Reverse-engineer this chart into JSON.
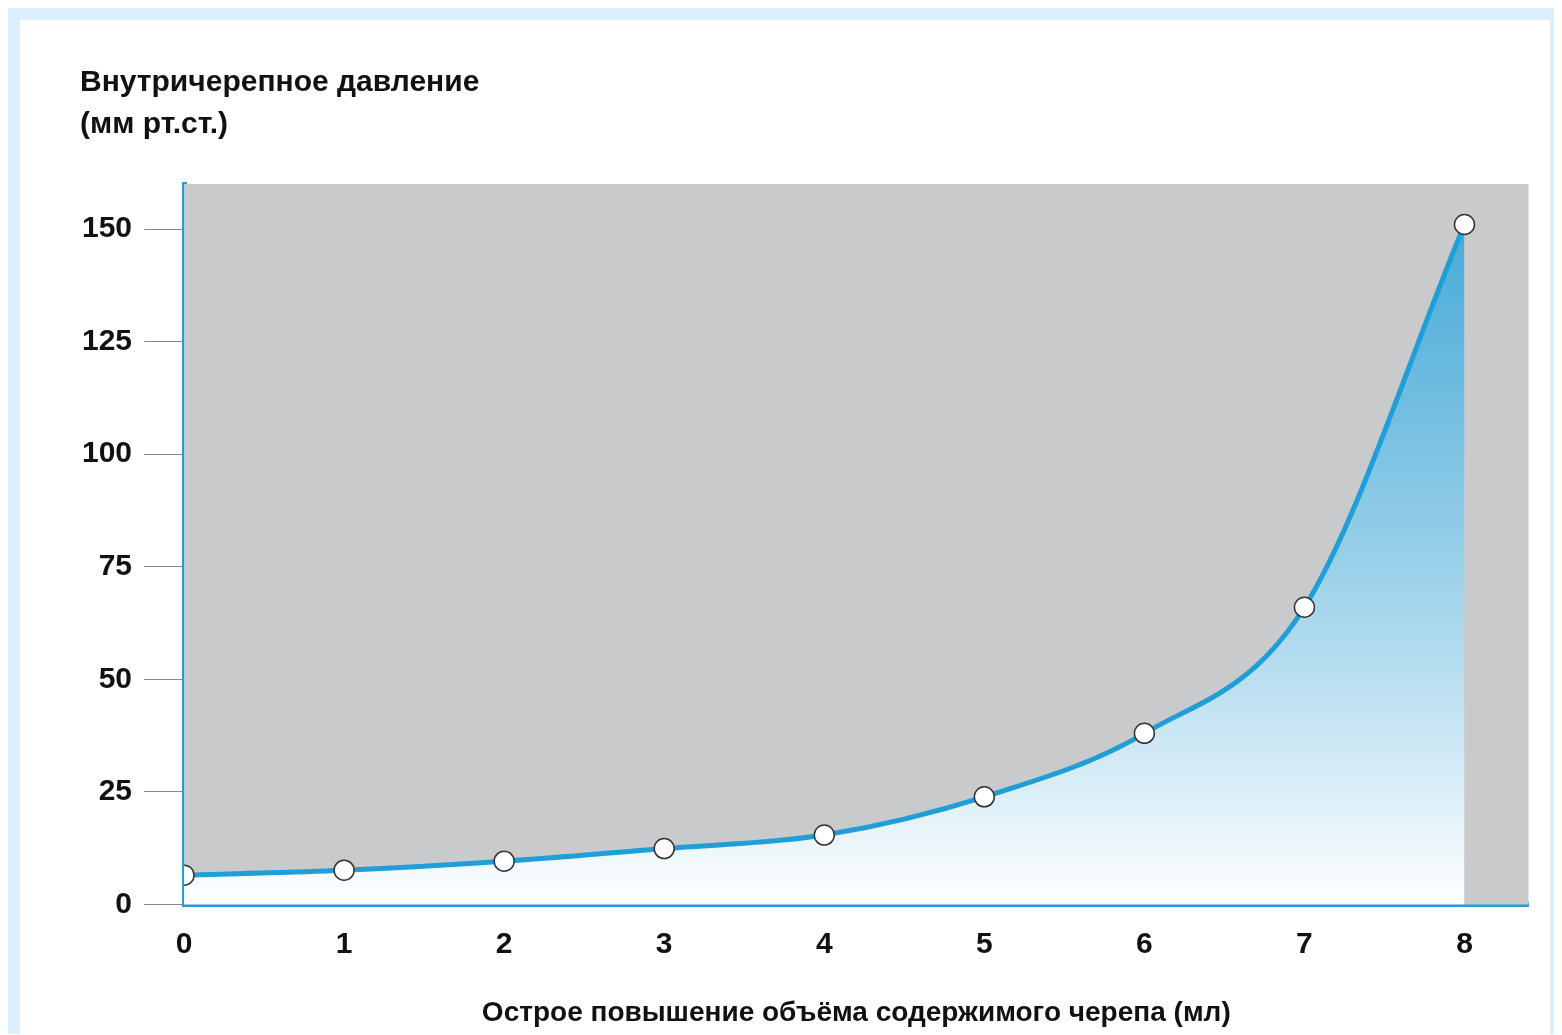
{
  "chart_data": {
    "type": "area",
    "xlabel": "Острое повышение объёма содержимого черепа (мл)",
    "ylabel": "Внутричерепное давление\n(мм рт.ст.)",
    "x": [
      0,
      1,
      2,
      3,
      4,
      5,
      6,
      7,
      8
    ],
    "series": [
      {
        "color": "#1f9ed8",
        "values": [
          6.5,
          7.6,
          9.6,
          12.4,
          15.4,
          23.9,
          38,
          66,
          151
        ]
      }
    ],
    "xlim": [
      0,
      8.4
    ],
    "xticks": [
      0,
      1,
      2,
      3,
      4,
      5,
      6,
      7,
      8
    ],
    "ylim": [
      0,
      160
    ],
    "yticks": [
      0,
      25,
      50,
      75,
      100,
      125,
      150
    ],
    "grid": false,
    "legend": false,
    "marker": "circle",
    "line_style": "solid"
  }
}
